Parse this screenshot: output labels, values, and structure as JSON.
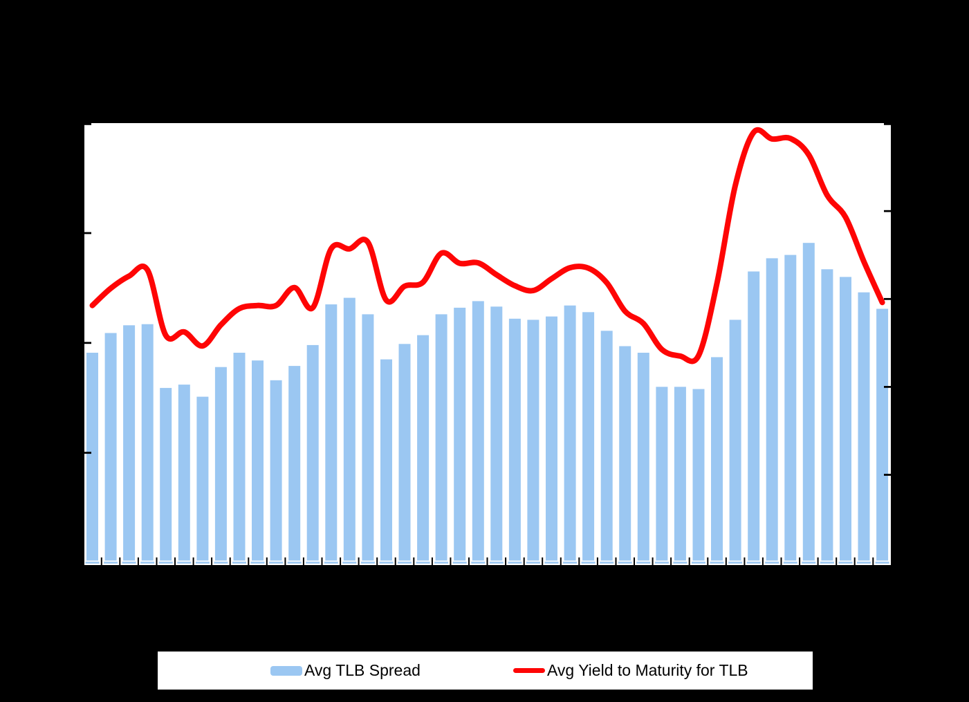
{
  "colors": {
    "background": "#000000",
    "plot_background": "#FFFFFF",
    "bar_fill": "#9BC7F2",
    "line_stroke": "#FE0505",
    "tick_stroke": "#000000",
    "baseline_dash": "#9BC7F2"
  },
  "legend": {
    "items": [
      {
        "label": "Avg TLB Spread",
        "type": "bar"
      },
      {
        "label": "Avg Yield to Maturity for TLB",
        "type": "line"
      }
    ]
  },
  "chart_data": {
    "type": "bar+line combo",
    "title": "",
    "x": {
      "points": 44,
      "tick_labels_visible": false
    },
    "axes": {
      "left": {
        "min": 0,
        "max": 400,
        "tick_interval": 100,
        "tick_count": 5,
        "labels_visible": false,
        "series": "Avg TLB Spread"
      },
      "right": {
        "min": 0,
        "max": 10,
        "tick_interval": 2,
        "tick_count": 6,
        "labels_visible": false,
        "series": "Avg Yield to Maturity for TLB"
      }
    },
    "grid": false,
    "legend_position": "bottom",
    "series": [
      {
        "name": "Avg TLB Spread",
        "type": "bar",
        "axis": "left",
        "values": [
          191,
          209,
          216,
          217,
          159,
          162,
          151,
          178,
          191,
          184,
          166,
          179,
          198,
          235,
          241,
          226,
          185,
          199,
          207,
          226,
          232,
          238,
          233,
          222,
          221,
          224,
          234,
          228,
          211,
          197,
          191,
          160,
          160,
          158,
          187,
          221,
          265,
          277,
          280,
          291,
          267,
          260,
          246,
          231
        ]
      },
      {
        "name": "Avg Yield to Maturity for TLB",
        "type": "line",
        "axis": "right",
        "smooth": true,
        "values": [
          5.85,
          6.24,
          6.52,
          6.66,
          5.17,
          5.25,
          4.93,
          5.41,
          5.78,
          5.85,
          5.85,
          6.26,
          5.8,
          7.14,
          7.14,
          7.29,
          5.97,
          6.29,
          6.38,
          7.04,
          6.81,
          6.82,
          6.55,
          6.3,
          6.19,
          6.46,
          6.71,
          6.7,
          6.37,
          5.72,
          5.44,
          4.85,
          4.7,
          4.71,
          6.35,
          8.58,
          9.79,
          9.64,
          9.65,
          9.28,
          8.36,
          7.86,
          6.85,
          5.92
        ]
      }
    ]
  }
}
